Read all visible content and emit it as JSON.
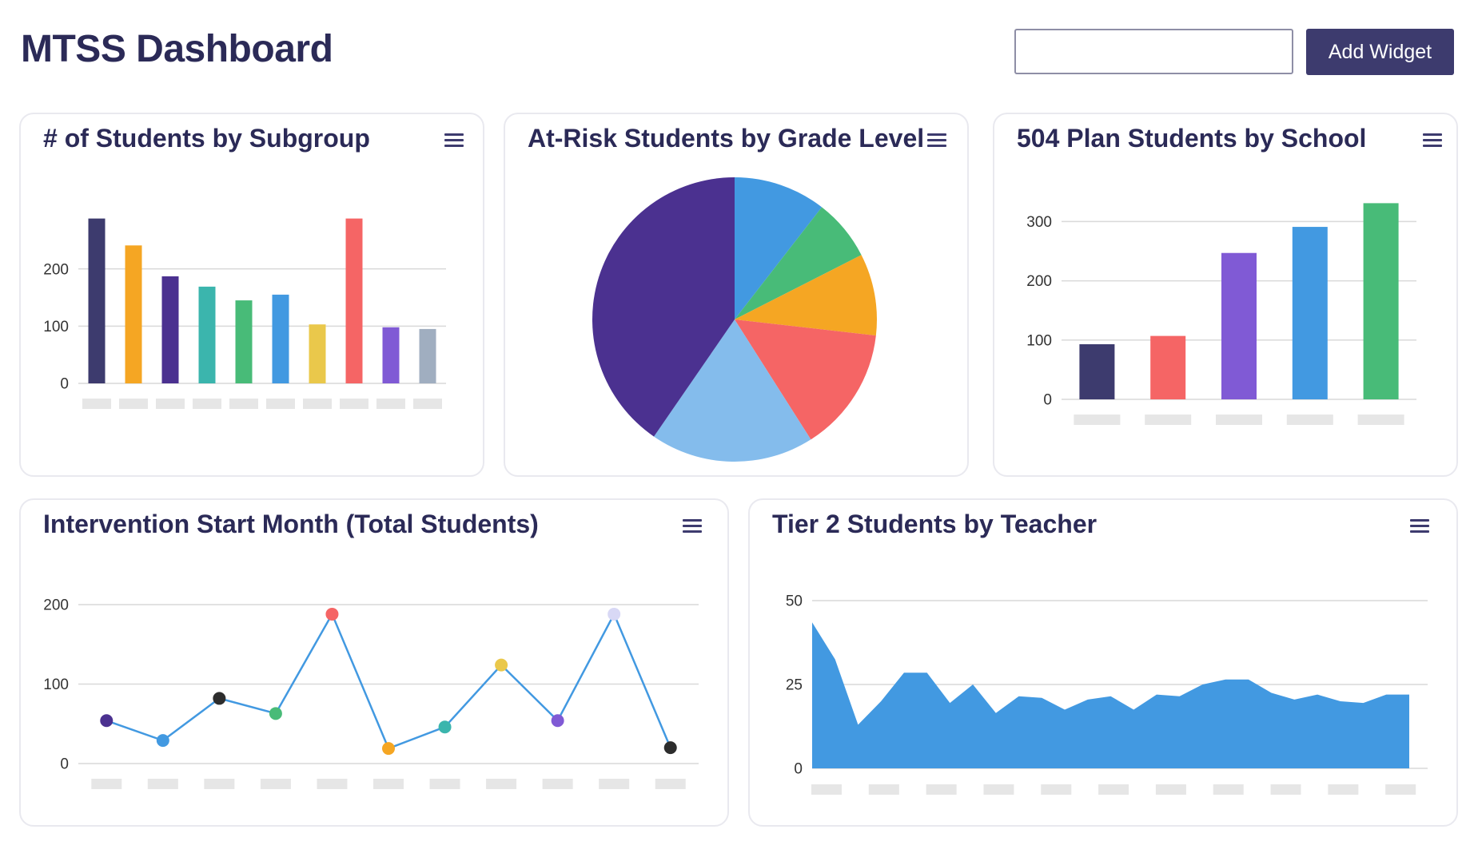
{
  "header": {
    "title": "MTSS Dashboard",
    "search_value": "",
    "add_widget_label": "Add Widget"
  },
  "colors": {
    "accent": "#3d3b6e",
    "title": "#2b2a57"
  },
  "widgets": [
    {
      "title": "#  of Students by Subgroup",
      "menu_icon": "hamburger-menu-icon",
      "chart_data": {
        "type": "bar",
        "categories": [
          "",
          "",
          "",
          "",
          "",
          "",
          "",
          "",
          "",
          ""
        ],
        "values": [
          288,
          241,
          187,
          169,
          145,
          155,
          103,
          288,
          98,
          95
        ],
        "colors": [
          "#3d3b6e",
          "#f5a623",
          "#4b3190",
          "#3bb5ad",
          "#48bb78",
          "#4299e1",
          "#eac84b",
          "#f56565",
          "#805ad5",
          "#a0aec0"
        ],
        "yticks": [
          0,
          100,
          200
        ],
        "ylim": [
          0,
          300
        ],
        "grid": true
      }
    },
    {
      "title": "At-Risk Students by Grade Level",
      "menu_icon": "hamburger-menu-icon",
      "chart_data": {
        "type": "pie",
        "values": [
          10.5,
          7,
          9.3,
          14.2,
          18.6,
          40.4
        ],
        "colors": [
          "#4299e1",
          "#48bb78",
          "#f5a623",
          "#f56565",
          "#84bcec",
          "#4b3190"
        ]
      }
    },
    {
      "title": "504 Plan Students by School",
      "menu_icon": "hamburger-menu-icon",
      "chart_data": {
        "type": "bar",
        "categories": [
          "",
          "",
          "",
          "",
          ""
        ],
        "values": [
          93,
          107,
          247,
          291,
          331
        ],
        "colors": [
          "#3d3b6e",
          "#f56565",
          "#805ad5",
          "#4299e1",
          "#48bb78"
        ],
        "yticks": [
          0,
          100,
          200,
          300
        ],
        "ylim": [
          0,
          345
        ],
        "grid": true
      }
    },
    {
      "title": "Intervention Start Month (Total Students)",
      "menu_icon": "hamburger-menu-icon",
      "chart_data": {
        "type": "line",
        "categories": [
          "",
          "",
          "",
          "",
          "",
          "",
          "",
          "",
          "",
          "",
          ""
        ],
        "values": [
          54,
          29,
          82,
          63,
          188,
          19,
          46,
          124,
          54,
          188,
          20
        ],
        "point_colors": [
          "#4b3190",
          "#4299e1",
          "#2d2d2d",
          "#48bb78",
          "#f56565",
          "#f5a623",
          "#3bb5ad",
          "#eac84b",
          "#805ad5",
          "#d8d8f5",
          "#2d2d2d"
        ],
        "line_color": "#4299e1",
        "yticks": [
          0,
          100,
          200
        ],
        "ylim": [
          0,
          200
        ],
        "grid": true
      }
    },
    {
      "title": "Tier 2 Students by Teacher",
      "menu_icon": "hamburger-menu-icon",
      "chart_data": {
        "type": "area",
        "values": [
          43.5,
          32.5,
          13,
          20,
          28.5,
          28.5,
          19.5,
          25,
          16.5,
          21.5,
          21,
          17.5,
          20.5,
          21.5,
          17.5,
          22,
          21.5,
          25,
          26.5,
          26.5,
          22.5,
          20.5,
          22,
          20,
          19.5,
          22,
          22
        ],
        "tick_count": 11,
        "fill_color": "#4299e1",
        "yticks": [
          0,
          25,
          50
        ],
        "ylim": [
          0,
          50
        ],
        "grid": true
      }
    }
  ]
}
